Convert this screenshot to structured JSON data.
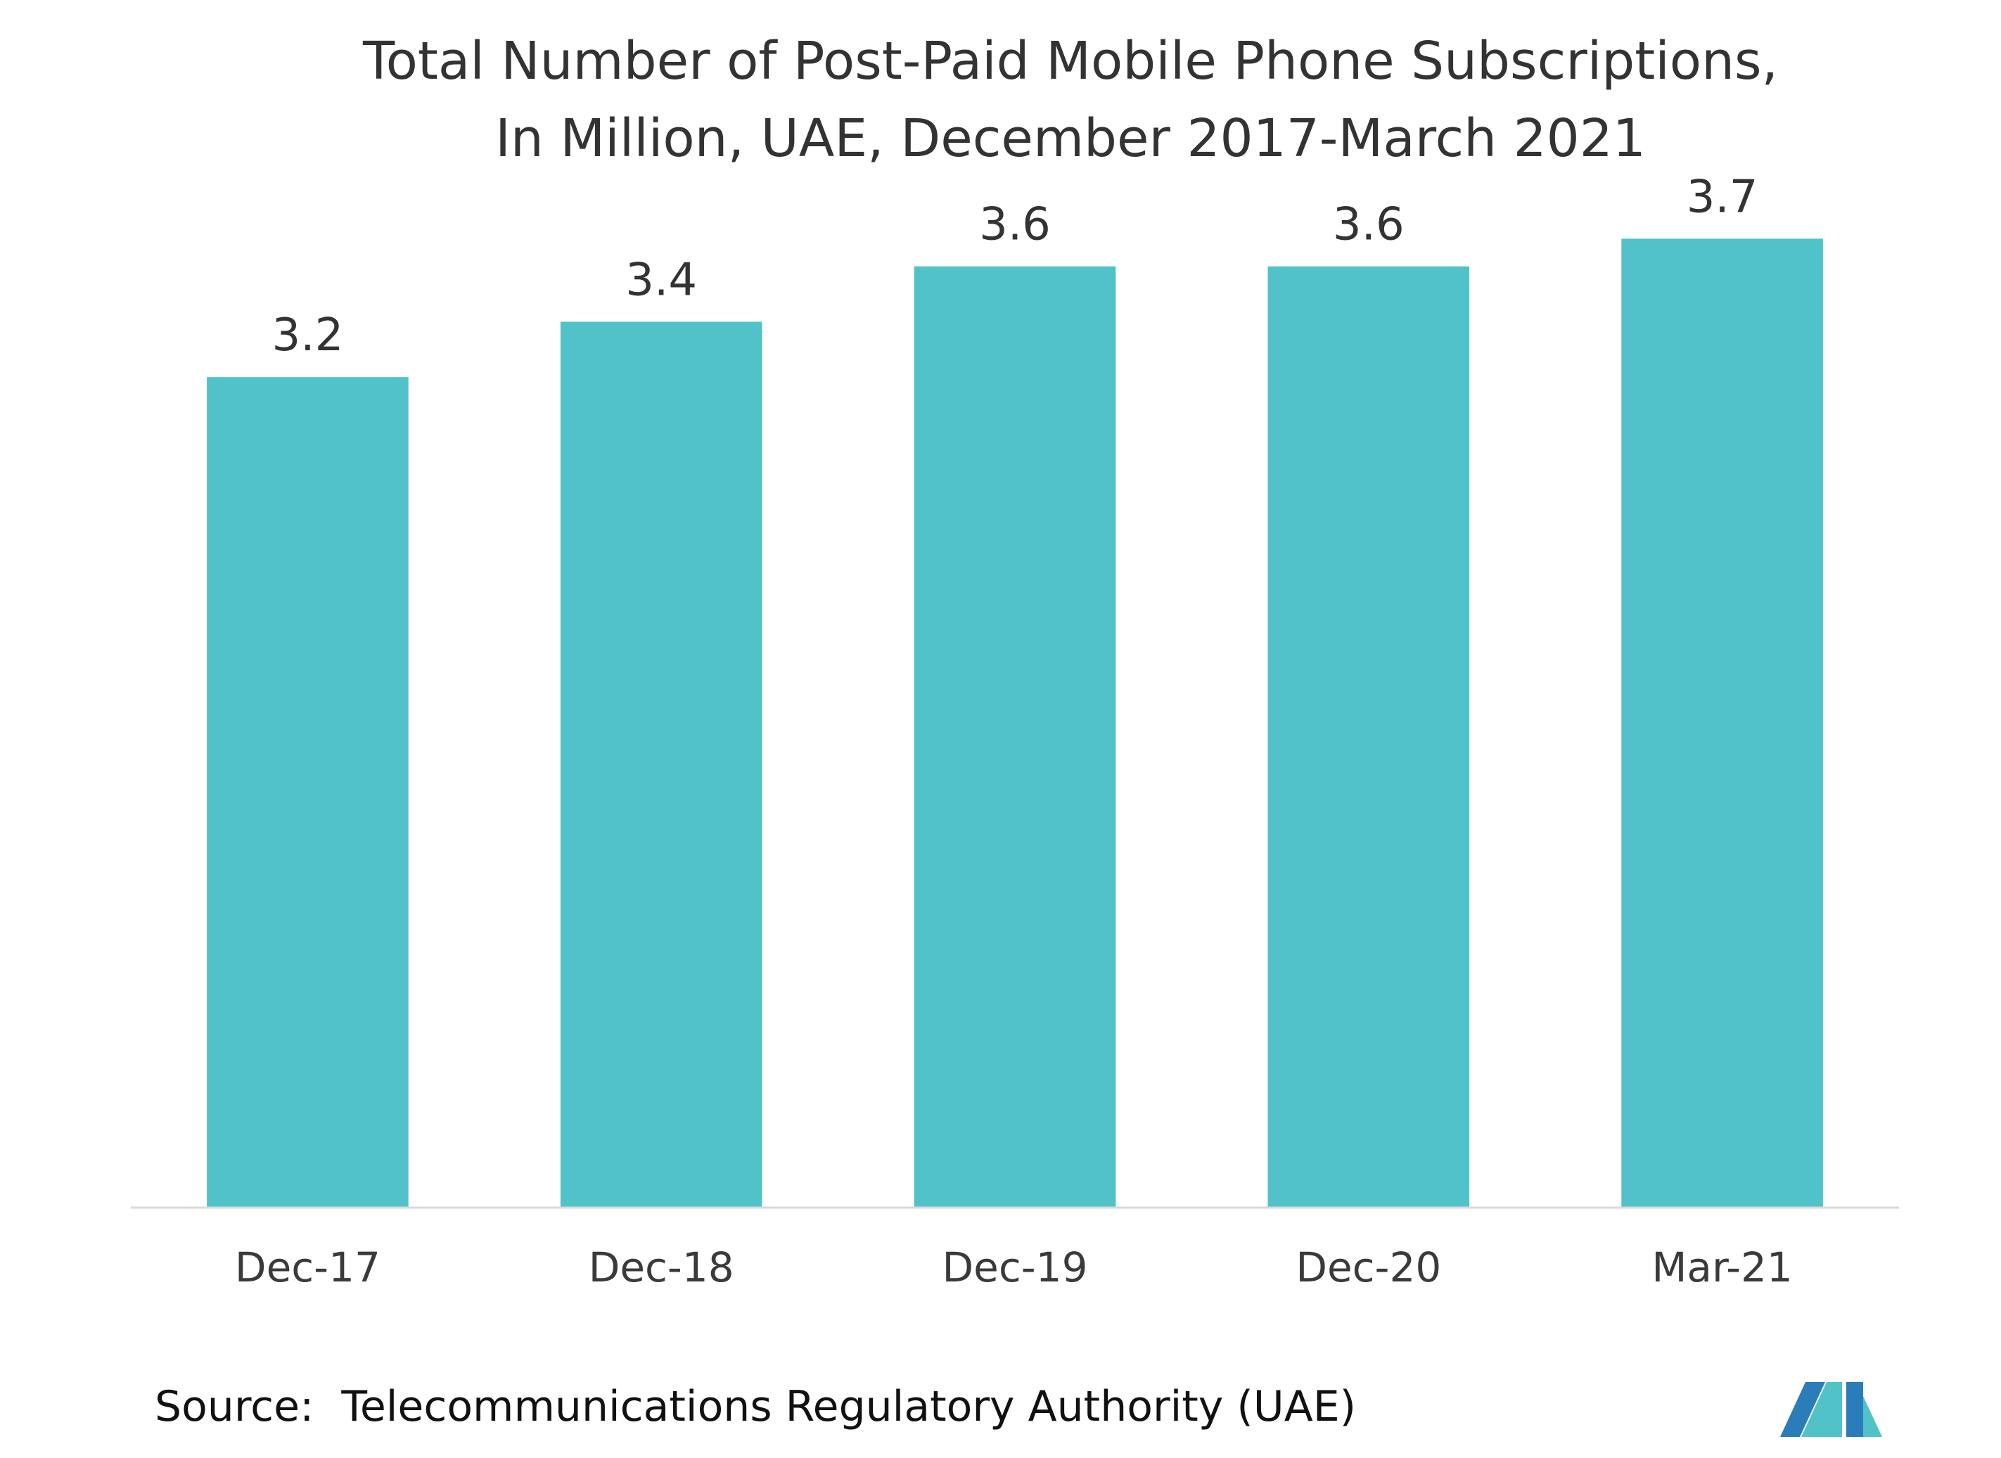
{
  "chart_data": {
    "type": "bar",
    "title_lines": [
      "Total Number of Post-Paid Mobile Phone Subscriptions,",
      "In Million, UAE, December 2017-March 2021"
    ],
    "categories": [
      "Dec-17",
      "Dec-18",
      "Dec-19",
      "Dec-20",
      "Mar-21"
    ],
    "values": [
      3.2,
      3.4,
      3.6,
      3.6,
      3.7
    ],
    "data_labels": [
      "3.2",
      "3.4",
      "3.6",
      "3.6",
      "3.7"
    ],
    "xlabel": "",
    "ylabel": "",
    "ylim": [
      0.2,
      3.8
    ],
    "grid": false,
    "legend": "none",
    "bar_color": "#52c2c9",
    "axis_color": "#d9d9d9",
    "text_color": "#333333"
  },
  "source": {
    "label": "Source:",
    "text": "Telecommunications Regulatory Authority (UAE)"
  },
  "logo": {
    "icon": "mordor-intelligence-logo-icon",
    "colors": [
      "#2a7db8",
      "#52c2c9"
    ]
  }
}
